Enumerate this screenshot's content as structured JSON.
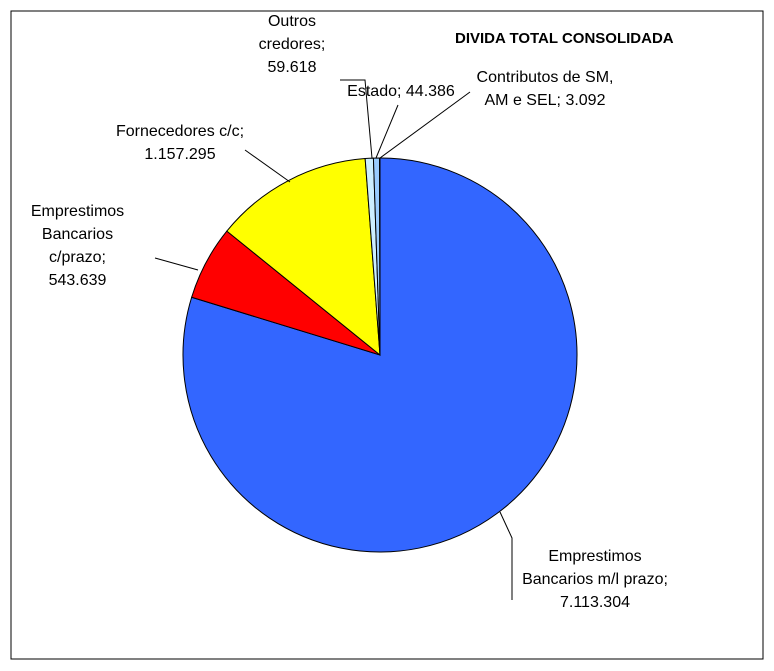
{
  "chart_data": {
    "type": "pie",
    "title": "DIVIDA TOTAL CONSOLIDADA",
    "categories": [
      "Emprestimos Bancarios m/l prazo;",
      "Emprestimos Bancarios c/prazo;",
      "Fornecedores c/c;",
      "Outros credores;",
      "Estado;",
      "Contributos de SM, AM e SEL;"
    ],
    "values": [
      7113304,
      543639,
      1157295,
      59618,
      44386,
      3092
    ],
    "value_labels": [
      "7.113.304",
      "543.639",
      "1.157.295",
      "59.618",
      "44.386",
      "3.092"
    ],
    "colors": [
      "#3366ff",
      "#ff0000",
      "#ffff00",
      "#cceeff",
      "#99ccff",
      "#e6e6e6"
    ]
  }
}
